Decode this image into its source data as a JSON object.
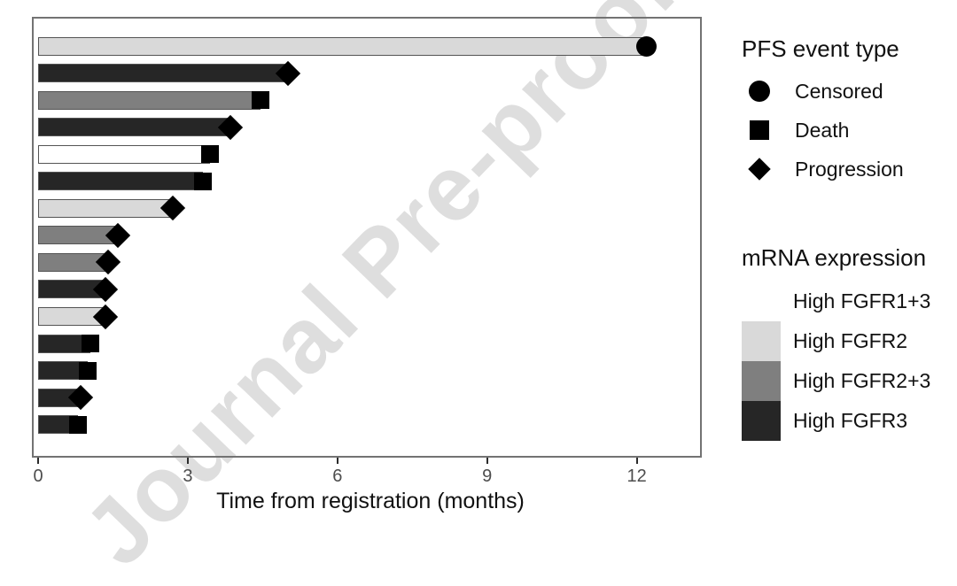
{
  "figure": {
    "watermark": "Journal Pre-proof"
  },
  "chart_data": {
    "type": "bar",
    "orientation": "horizontal",
    "title": "",
    "xlabel": "Time from registration (months)",
    "ylabel": "",
    "x_ticks": [
      0,
      3,
      6,
      9,
      12
    ],
    "xlim": [
      0,
      13.3
    ],
    "grid": false,
    "marker_color": "#000000",
    "bar_stroke": "#545454",
    "expression_colors": {
      "High FGFR1+3": "#ffffff",
      "High FGFR2": "#d9d9d9",
      "High FGFR2+3": "#7f7f7f",
      "High FGFR3": "#262626"
    },
    "event_shapes": {
      "Censored": "circle",
      "Death": "square",
      "Progression": "diamond"
    },
    "bars": [
      {
        "time": 12.2,
        "event": "Censored",
        "expression": "High FGFR2"
      },
      {
        "time": 5.0,
        "event": "Progression",
        "expression": "High FGFR3"
      },
      {
        "time": 4.45,
        "event": "Death",
        "expression": "High FGFR2+3"
      },
      {
        "time": 3.85,
        "event": "Progression",
        "expression": "High FGFR3"
      },
      {
        "time": 3.45,
        "event": "Death",
        "expression": "High FGFR1+3"
      },
      {
        "time": 3.3,
        "event": "Death",
        "expression": "High FGFR3"
      },
      {
        "time": 2.7,
        "event": "Progression",
        "expression": "High FGFR2"
      },
      {
        "time": 1.6,
        "event": "Progression",
        "expression": "High FGFR2+3"
      },
      {
        "time": 1.4,
        "event": "Progression",
        "expression": "High FGFR2+3"
      },
      {
        "time": 1.35,
        "event": "Progression",
        "expression": "High FGFR3"
      },
      {
        "time": 1.35,
        "event": "Progression",
        "expression": "High FGFR2"
      },
      {
        "time": 1.05,
        "event": "Death",
        "expression": "High FGFR3"
      },
      {
        "time": 1.0,
        "event": "Death",
        "expression": "High FGFR3"
      },
      {
        "time": 0.85,
        "event": "Progression",
        "expression": "High FGFR3"
      },
      {
        "time": 0.8,
        "event": "Death",
        "expression": "High FGFR3"
      }
    ]
  },
  "legend_event": {
    "title": "PFS event type",
    "items": [
      {
        "label": "Censored",
        "shape": "circle"
      },
      {
        "label": "Death",
        "shape": "square"
      },
      {
        "label": "Progression",
        "shape": "diamond"
      }
    ]
  },
  "legend_expression": {
    "title": "mRNA expression",
    "items": [
      {
        "label": "High FGFR1+3",
        "color": "#ffffff"
      },
      {
        "label": "High FGFR2",
        "color": "#d9d9d9"
      },
      {
        "label": "High FGFR2+3",
        "color": "#7f7f7f"
      },
      {
        "label": "High FGFR3",
        "color": "#262626"
      }
    ]
  }
}
